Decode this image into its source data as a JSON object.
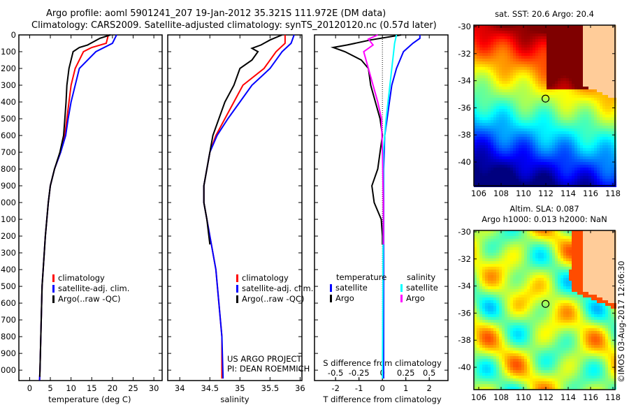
{
  "title_line1": "Argo profile: aoml 5901241_207 19-Jan-2012 35.321S 111.972E (DM data)",
  "title_line2": "Climatology: CARS2009. Satellite-adjusted climatology: synTS_20120120.nc (0.57d later)",
  "colors": {
    "climatology": "#ff0000",
    "satellite": "#0000ff",
    "argo": "#000000",
    "sal_satellite": "#00ffff",
    "sal_argo": "#ff00ff"
  },
  "chart_data": [
    {
      "type": "line",
      "xlabel": "temperature (deg C)",
      "ylabel": "",
      "xlim": [
        -2.6,
        32
      ],
      "ylim": [
        2062,
        0
      ],
      "xticks": [
        "0",
        "5",
        "10",
        "15",
        "20",
        "25",
        "30"
      ],
      "yticks": [
        "0",
        "100",
        "200",
        "300",
        "400",
        "500",
        "600",
        "700",
        "800",
        "900",
        "1000",
        "1100",
        "1200",
        "1300",
        "1400",
        "1500",
        "1600",
        "1700",
        "1800",
        "1900",
        "2000"
      ],
      "legend": [
        "climatology",
        "satellite-adj. clim.",
        "Argo(..raw -QC)"
      ],
      "series": [
        {
          "name": "climatology",
          "color": "#ff0000",
          "depth": [
            0,
            50,
            75,
            100,
            200,
            300,
            400,
            500,
            600,
            700,
            800,
            900,
            1000,
            1200,
            1500,
            2000,
            2060
          ],
          "values": [
            19,
            18.5,
            15,
            13,
            11,
            10,
            9.5,
            9,
            8.5,
            7.5,
            6,
            5,
            4.5,
            3.8,
            3,
            2.5,
            2.4
          ]
        },
        {
          "name": "satellite-adj. clim.",
          "color": "#0000ff",
          "depth": [
            0,
            50,
            100,
            200,
            300,
            400,
            500,
            600,
            700,
            800,
            900,
            1000,
            1200,
            1500,
            2000,
            2060
          ],
          "values": [
            21,
            20,
            16,
            12,
            11,
            10,
            9.3,
            8.7,
            7.5,
            6,
            5,
            4.5,
            3.8,
            3,
            2.5,
            2.4
          ]
        },
        {
          "name": "Argo(..raw -QC)",
          "color": "#000000",
          "depth": [
            0,
            20,
            60,
            75,
            100,
            200,
            300,
            400,
            500,
            600,
            700,
            800,
            900,
            1000,
            1200,
            1500,
            2000,
            2040
          ],
          "values": [
            19.5,
            17,
            14,
            12,
            10.5,
            9.5,
            9,
            8.8,
            8.5,
            8.2,
            7.3,
            6,
            5,
            4.5,
            3.8,
            3,
            2.5,
            2.45
          ]
        }
      ]
    },
    {
      "type": "line",
      "xlabel": "salinity",
      "xlim": [
        33.8,
        36.03
      ],
      "ylim": [
        2062,
        0
      ],
      "xticks": [
        "34",
        "34.5",
        "35",
        "35.5",
        "36"
      ],
      "legend": [
        "climatology",
        "satellite-adj. clim.",
        "Argo(..raw -QC)"
      ],
      "annotation": [
        "US ARGO PROJECT",
        "PI: DEAN ROEMMICH"
      ],
      "series": [
        {
          "name": "climatology",
          "color": "#ff0000",
          "depth": [
            0,
            50,
            100,
            200,
            300,
            400,
            500,
            600,
            700,
            800,
            900,
            1000,
            1200,
            1400,
            1600,
            1800,
            2050
          ],
          "values": [
            35.75,
            35.75,
            35.6,
            35.4,
            35.05,
            34.9,
            34.75,
            34.6,
            34.5,
            34.45,
            34.4,
            34.4,
            34.5,
            34.6,
            34.65,
            34.7,
            34.7
          ]
        },
        {
          "name": "satellite-adj. clim.",
          "color": "#0000ff",
          "depth": [
            0,
            50,
            100,
            200,
            300,
            400,
            500,
            600,
            700,
            800,
            900,
            1000,
            1200,
            1400,
            1600,
            1800,
            2050
          ],
          "values": [
            35.9,
            35.85,
            35.7,
            35.5,
            35.2,
            35.0,
            34.8,
            34.62,
            34.5,
            34.45,
            34.4,
            34.4,
            34.5,
            34.6,
            34.65,
            34.7,
            34.72
          ]
        },
        {
          "name": "Argo(..raw -QC)",
          "color": "#000000",
          "depth": [
            0,
            30,
            60,
            80,
            100,
            150,
            200,
            300,
            400,
            500,
            600,
            700,
            800,
            900,
            1000,
            1100,
            1250
          ],
          "values": [
            35.7,
            35.5,
            35.35,
            35.2,
            35.3,
            35.2,
            35.0,
            34.9,
            34.75,
            34.65,
            34.55,
            34.5,
            34.45,
            34.4,
            34.4,
            34.45,
            34.5
          ]
        }
      ]
    },
    {
      "type": "line",
      "xlabel": "T difference from climatology",
      "xlabel2": "S difference from climatology",
      "xlim": [
        -2.9,
        2.8
      ],
      "ylim": [
        2062,
        0
      ],
      "xticks": [
        "-2",
        "-1",
        "0",
        "1",
        "2"
      ],
      "xticks2": [
        "-0.5",
        "-0.25",
        "0",
        "0.25",
        "0.5"
      ],
      "legend_temperature": {
        "title": "temperature",
        "items": [
          "satellite",
          "Argo"
        ]
      },
      "legend_salinity": {
        "title": "salinity",
        "items": [
          "satellite",
          "Argo"
        ]
      },
      "series": [
        {
          "name": "temperature satellite",
          "color": "#0000ff",
          "scale": "T",
          "depth": [
            0,
            20,
            50,
            100,
            200,
            300,
            400,
            500,
            600,
            800,
            2050
          ],
          "values": [
            1.6,
            1.6,
            1.3,
            0.9,
            0.6,
            0.4,
            0.3,
            0.2,
            0.1,
            0.05,
            0.05
          ]
        },
        {
          "name": "temperature Argo",
          "color": "#000000",
          "scale": "T",
          "depth": [
            0,
            30,
            60,
            75,
            100,
            150,
            200,
            300,
            400,
            500,
            600,
            700,
            800,
            900,
            1000,
            1100,
            1200,
            1250
          ],
          "values": [
            0.8,
            -0.5,
            -1.5,
            -2.1,
            -1.6,
            -0.9,
            -0.6,
            -0.5,
            -0.3,
            -0.1,
            0,
            -0.1,
            -0.2,
            -0.45,
            -0.35,
            -0.05,
            0,
            0
          ]
        },
        {
          "name": "salinity satellite",
          "color": "#00ffff",
          "scale": "S",
          "depth": [
            0,
            50,
            100,
            200,
            300,
            500,
            700,
            1000,
            2050
          ],
          "values": [
            0.15,
            0.13,
            0.12,
            0.1,
            0.08,
            0.04,
            0.01,
            0.01,
            0.0
          ]
        },
        {
          "name": "salinity Argo",
          "color": "#ff00ff",
          "scale": "S",
          "depth": [
            0,
            25,
            60,
            100,
            200,
            300,
            400,
            500,
            700,
            1000,
            1250
          ],
          "values": [
            -0.05,
            -0.15,
            -0.1,
            -0.2,
            -0.15,
            -0.1,
            -0.05,
            -0.01,
            0,
            0.01,
            0.01
          ]
        }
      ]
    },
    {
      "type": "heatmap",
      "title": "sat. SST: 20.6 Argo: 20.4",
      "xticks": [
        "106",
        "108",
        "110",
        "112",
        "114",
        "116",
        "118"
      ],
      "yticks": [
        "-30",
        "-32",
        "-34",
        "-36",
        "-38",
        "-40"
      ],
      "marker": {
        "lon": 111.972,
        "lat": -35.321
      }
    },
    {
      "type": "heatmap",
      "title": "Altim. SLA: 0.087",
      "subtitle": "Argo h1000: 0.013 h2000: NaN",
      "xticks": [
        "106",
        "108",
        "110",
        "112",
        "114",
        "116",
        "118"
      ],
      "yticks": [
        "-30",
        "-32",
        "-34",
        "-36",
        "-38",
        "-40"
      ],
      "marker": {
        "lon": 111.972,
        "lat": -35.321
      }
    }
  ],
  "credit": "©IMOS 03-Aug-2017 12:06:30"
}
